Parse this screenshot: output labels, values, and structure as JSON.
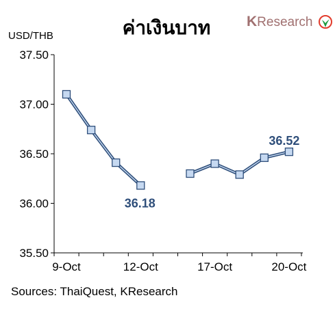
{
  "header": {
    "title": "ค่าเงินบาท",
    "unit": "USD/THB",
    "logo_k": "K",
    "logo_rest": "Research",
    "logo_color": "#a07070",
    "logo_mark_color": "#e23c2c",
    "logo_leaf_color": "#1a9a3e"
  },
  "footer": {
    "source": "Sources: ThaiQuest, KResearch"
  },
  "colors": {
    "line": "#2e4e7a",
    "marker_fill": "#c6d9f1",
    "marker_stroke": "#2e4e7a",
    "axis": "#000000"
  },
  "chart_data": {
    "type": "line",
    "title": "ค่าเงินบาท",
    "ylabel": "USD/THB",
    "ylim": [
      35.5,
      37.5
    ],
    "yticks": [
      "37.50",
      "37.00",
      "36.50",
      "36.00",
      "35.50"
    ],
    "ytick_values": [
      37.5,
      37.0,
      36.5,
      36.0,
      35.5
    ],
    "x_tick_labels": [
      {
        "label": "9-Oct",
        "index": 0
      },
      {
        "label": "12-Oct",
        "index": 3
      },
      {
        "label": "17-Oct",
        "index": 6
      },
      {
        "label": "20-Oct",
        "index": 9
      }
    ],
    "segments": [
      {
        "points": [
          {
            "i": 0,
            "y": 37.1
          },
          {
            "i": 1,
            "y": 36.74
          },
          {
            "i": 2,
            "y": 36.41
          },
          {
            "i": 3,
            "y": 36.18
          }
        ]
      },
      {
        "points": [
          {
            "i": 5,
            "y": 36.3
          },
          {
            "i": 6,
            "y": 36.4
          },
          {
            "i": 7,
            "y": 36.29
          },
          {
            "i": 8,
            "y": 36.46
          },
          {
            "i": 9,
            "y": 36.52
          }
        ]
      }
    ],
    "data_labels": [
      {
        "text": "36.18",
        "i": 3,
        "y": 36.18,
        "pos": "below"
      },
      {
        "text": "36.52",
        "i": 9,
        "y": 36.52,
        "pos": "above"
      }
    ],
    "grid": false,
    "legend": "none",
    "source": "Sources: ThaiQuest, KResearch"
  }
}
